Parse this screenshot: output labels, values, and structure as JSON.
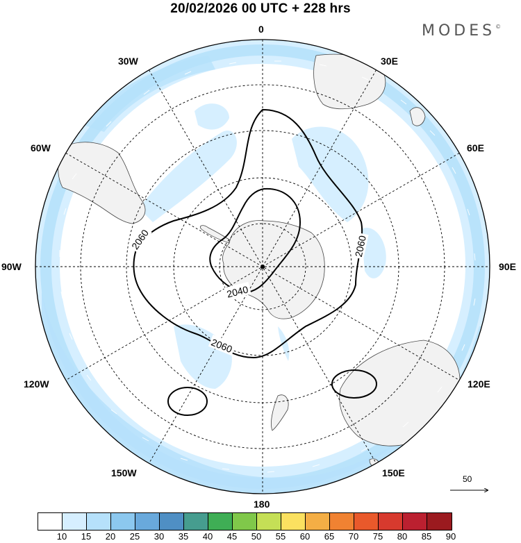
{
  "title": "20/02/2026  00 UTC  + 228 hrs",
  "brand": {
    "text": "MODES",
    "mark": "©"
  },
  "longitude_labels": [
    "0",
    "30E",
    "60E",
    "90E",
    "120E",
    "150E",
    "180",
    "150W",
    "120W",
    "90W",
    "60W",
    "30W"
  ],
  "contour_labels": [
    "2060",
    "2060",
    "2040",
    "2060"
  ],
  "reference_vector": {
    "value": "50"
  },
  "colorbar": {
    "colors": [
      "#ffffff",
      "#d6efff",
      "#b6e1fb",
      "#8cc8ef",
      "#69a9dc",
      "#4f8fc4",
      "#469d8f",
      "#3fae55",
      "#80c84a",
      "#c5df56",
      "#fbe160",
      "#f4ae45",
      "#f08232",
      "#e9592b",
      "#d73a2e",
      "#bb2030",
      "#9b1a1f"
    ],
    "labels": [
      "10",
      "15",
      "20",
      "25",
      "30",
      "35",
      "40",
      "45",
      "50",
      "55",
      "60",
      "65",
      "70",
      "75",
      "80",
      "85",
      "90"
    ]
  },
  "colors": {
    "jet_light": "#d6efff",
    "jet_mid": "#b6e1fb",
    "land": "#f2f2f2",
    "border": "#000000"
  }
}
